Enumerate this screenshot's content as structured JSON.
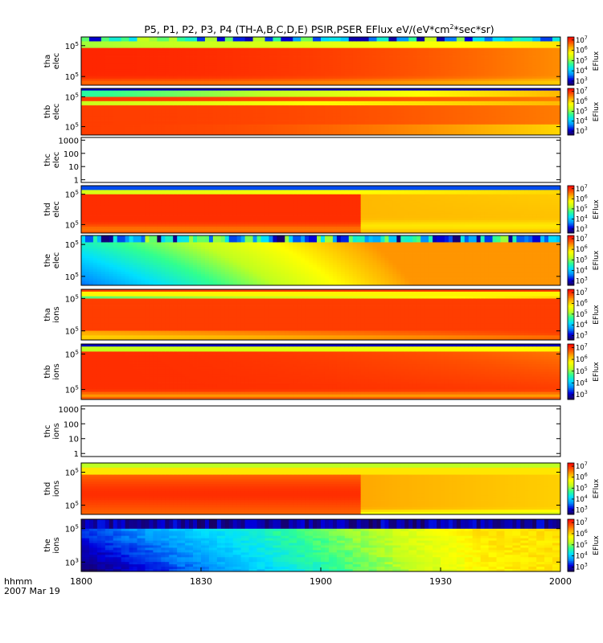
{
  "chart_data": {
    "type": "heatmap",
    "title": "P5, P1, P2, P3, P4 (TH-A,B,C,D,E) PSIR,PSER EFlux eV/(eV*cm^2*sec*sr)",
    "title_parts": {
      "main": "P5, P1, P2, P3, P4 (TH-A,B,C,D,E) PSIR,PSER EFlux eV/(eV*cm",
      "sup": "2",
      "tail": "*sec*sr)"
    },
    "x_axis": {
      "ticks": [
        "1800",
        "1830",
        "1900",
        "1930",
        "2000"
      ],
      "label_line1": "hhmm",
      "label_line2": "2007 Mar 19"
    },
    "colorbar": {
      "label": "EFlux",
      "ticks": [
        "10^3",
        "10^4",
        "10^5",
        "10^6",
        "10^7"
      ],
      "scale_range_log10": [
        2.6,
        7.3
      ],
      "colors": [
        "#1b0055",
        "#0000dd",
        "#0090ff",
        "#00e0ff",
        "#30ff90",
        "#c0ff20",
        "#ffff00",
        "#ffb000",
        "#ff5000",
        "#ff0000"
      ]
    },
    "panels": [
      {
        "id": "tha-elec",
        "ylabel": [
          "tha",
          "elec"
        ],
        "yticks": [
          "10^5",
          "10^5"
        ],
        "has_data": true,
        "has_colorbar": true,
        "profile": "tha_e"
      },
      {
        "id": "thb-elec",
        "ylabel": [
          "thb",
          "elec"
        ],
        "yticks": [
          "10^5",
          "10^5"
        ],
        "has_data": true,
        "has_colorbar": true,
        "profile": "thb_e"
      },
      {
        "id": "thc-elec",
        "ylabel": [
          "thc",
          "elec"
        ],
        "yticks": [
          "1000",
          "100",
          "10",
          "1"
        ],
        "has_data": false,
        "has_colorbar": false,
        "profile": "none"
      },
      {
        "id": "thd-elec",
        "ylabel": [
          "thd",
          "elec"
        ],
        "yticks": [
          "10^5",
          "10^5"
        ],
        "has_data": true,
        "has_colorbar": true,
        "profile": "thd_e"
      },
      {
        "id": "the-elec",
        "ylabel": [
          "the",
          "elec"
        ],
        "yticks": [
          "10^5",
          "10^5"
        ],
        "has_data": true,
        "has_colorbar": true,
        "profile": "the_e"
      },
      {
        "id": "tha-ions",
        "ylabel": [
          "tha",
          "ions"
        ],
        "yticks": [
          "10^5",
          "10^5"
        ],
        "has_data": true,
        "has_colorbar": true,
        "profile": "tha_i"
      },
      {
        "id": "thb-ions",
        "ylabel": [
          "thb",
          "ions"
        ],
        "yticks": [
          "10^5",
          "10^5"
        ],
        "has_data": true,
        "has_colorbar": true,
        "profile": "thb_i"
      },
      {
        "id": "thc-ions",
        "ylabel": [
          "thc",
          "ions"
        ],
        "yticks": [
          "1000",
          "100",
          "10",
          "1"
        ],
        "has_data": false,
        "has_colorbar": false,
        "profile": "none"
      },
      {
        "id": "thd-ions",
        "ylabel": [
          "thd",
          "ions"
        ],
        "yticks": [
          "10^5",
          "10^5"
        ],
        "has_data": true,
        "has_colorbar": true,
        "profile": "thd_i"
      },
      {
        "id": "the-ions",
        "ylabel": [
          "the",
          "ions"
        ],
        "yticks": [
          "10^5",
          "10^3"
        ],
        "has_data": true,
        "has_colorbar": true,
        "profile": "the_i"
      }
    ]
  }
}
